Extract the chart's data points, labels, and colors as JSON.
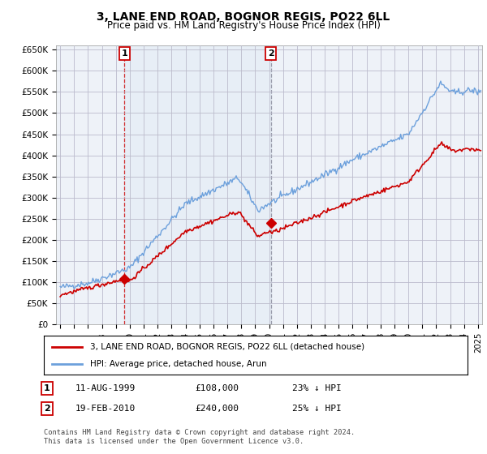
{
  "title": "3, LANE END ROAD, BOGNOR REGIS, PO22 6LL",
  "subtitle": "Price paid vs. HM Land Registry's House Price Index (HPI)",
  "ylim": [
    0,
    660000
  ],
  "xlim_start": 1994.7,
  "xlim_end": 2025.3,
  "hpi_color": "#6ca0dc",
  "hpi_fill_color": "#dce8f5",
  "price_color": "#cc0000",
  "grid_color": "#bbbbcc",
  "bg_color": "#ffffff",
  "plot_bg_color": "#eef2f8",
  "legend_label_red": "3, LANE END ROAD, BOGNOR REGIS, PO22 6LL (detached house)",
  "legend_label_blue": "HPI: Average price, detached house, Arun",
  "annotation1_date": "11-AUG-1999",
  "annotation1_price": "£108,000",
  "annotation1_hpi": "23% ↓ HPI",
  "annotation1_year": 1999.62,
  "annotation1_value": 108000,
  "annotation2_date": "19-FEB-2010",
  "annotation2_price": "£240,000",
  "annotation2_hpi": "25% ↓ HPI",
  "annotation2_year": 2010.12,
  "annotation2_value": 240000,
  "footnote": "Contains HM Land Registry data © Crown copyright and database right 2024.\nThis data is licensed under the Open Government Licence v3.0."
}
